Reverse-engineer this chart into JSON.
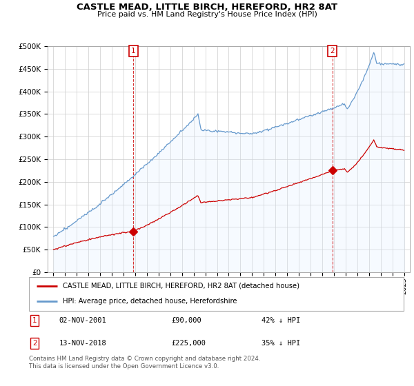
{
  "title": "CASTLE MEAD, LITTLE BIRCH, HEREFORD, HR2 8AT",
  "subtitle": "Price paid vs. HM Land Registry's House Price Index (HPI)",
  "property_label": "CASTLE MEAD, LITTLE BIRCH, HEREFORD, HR2 8AT (detached house)",
  "hpi_label": "HPI: Average price, detached house, Herefordshire",
  "sale1_date": "02-NOV-2001",
  "sale1_price": "£90,000",
  "sale1_hpi": "42% ↓ HPI",
  "sale2_date": "13-NOV-2018",
  "sale2_price": "£225,000",
  "sale2_hpi": "35% ↓ HPI",
  "footer": "Contains HM Land Registry data © Crown copyright and database right 2024.\nThis data is licensed under the Open Government Licence v3.0.",
  "sale_color": "#cc0000",
  "hpi_color": "#6699cc",
  "hpi_fill_color": "#ddeeff",
  "marker1_x": 2001.83,
  "marker1_y": 90000,
  "marker2_x": 2018.87,
  "marker2_y": 225000,
  "vline1_x": 2001.83,
  "vline2_x": 2018.87,
  "ylim": [
    0,
    500000
  ],
  "xlim": [
    1994.5,
    2025.5
  ],
  "yticks": [
    0,
    50000,
    100000,
    150000,
    200000,
    250000,
    300000,
    350000,
    400000,
    450000,
    500000
  ],
  "xticks": [
    1995,
    1996,
    1997,
    1998,
    1999,
    2000,
    2001,
    2002,
    2003,
    2004,
    2005,
    2006,
    2007,
    2008,
    2009,
    2010,
    2011,
    2012,
    2013,
    2014,
    2015,
    2016,
    2017,
    2018,
    2019,
    2020,
    2021,
    2022,
    2023,
    2024,
    2025
  ],
  "background_color": "#ffffff",
  "grid_color": "#cccccc"
}
